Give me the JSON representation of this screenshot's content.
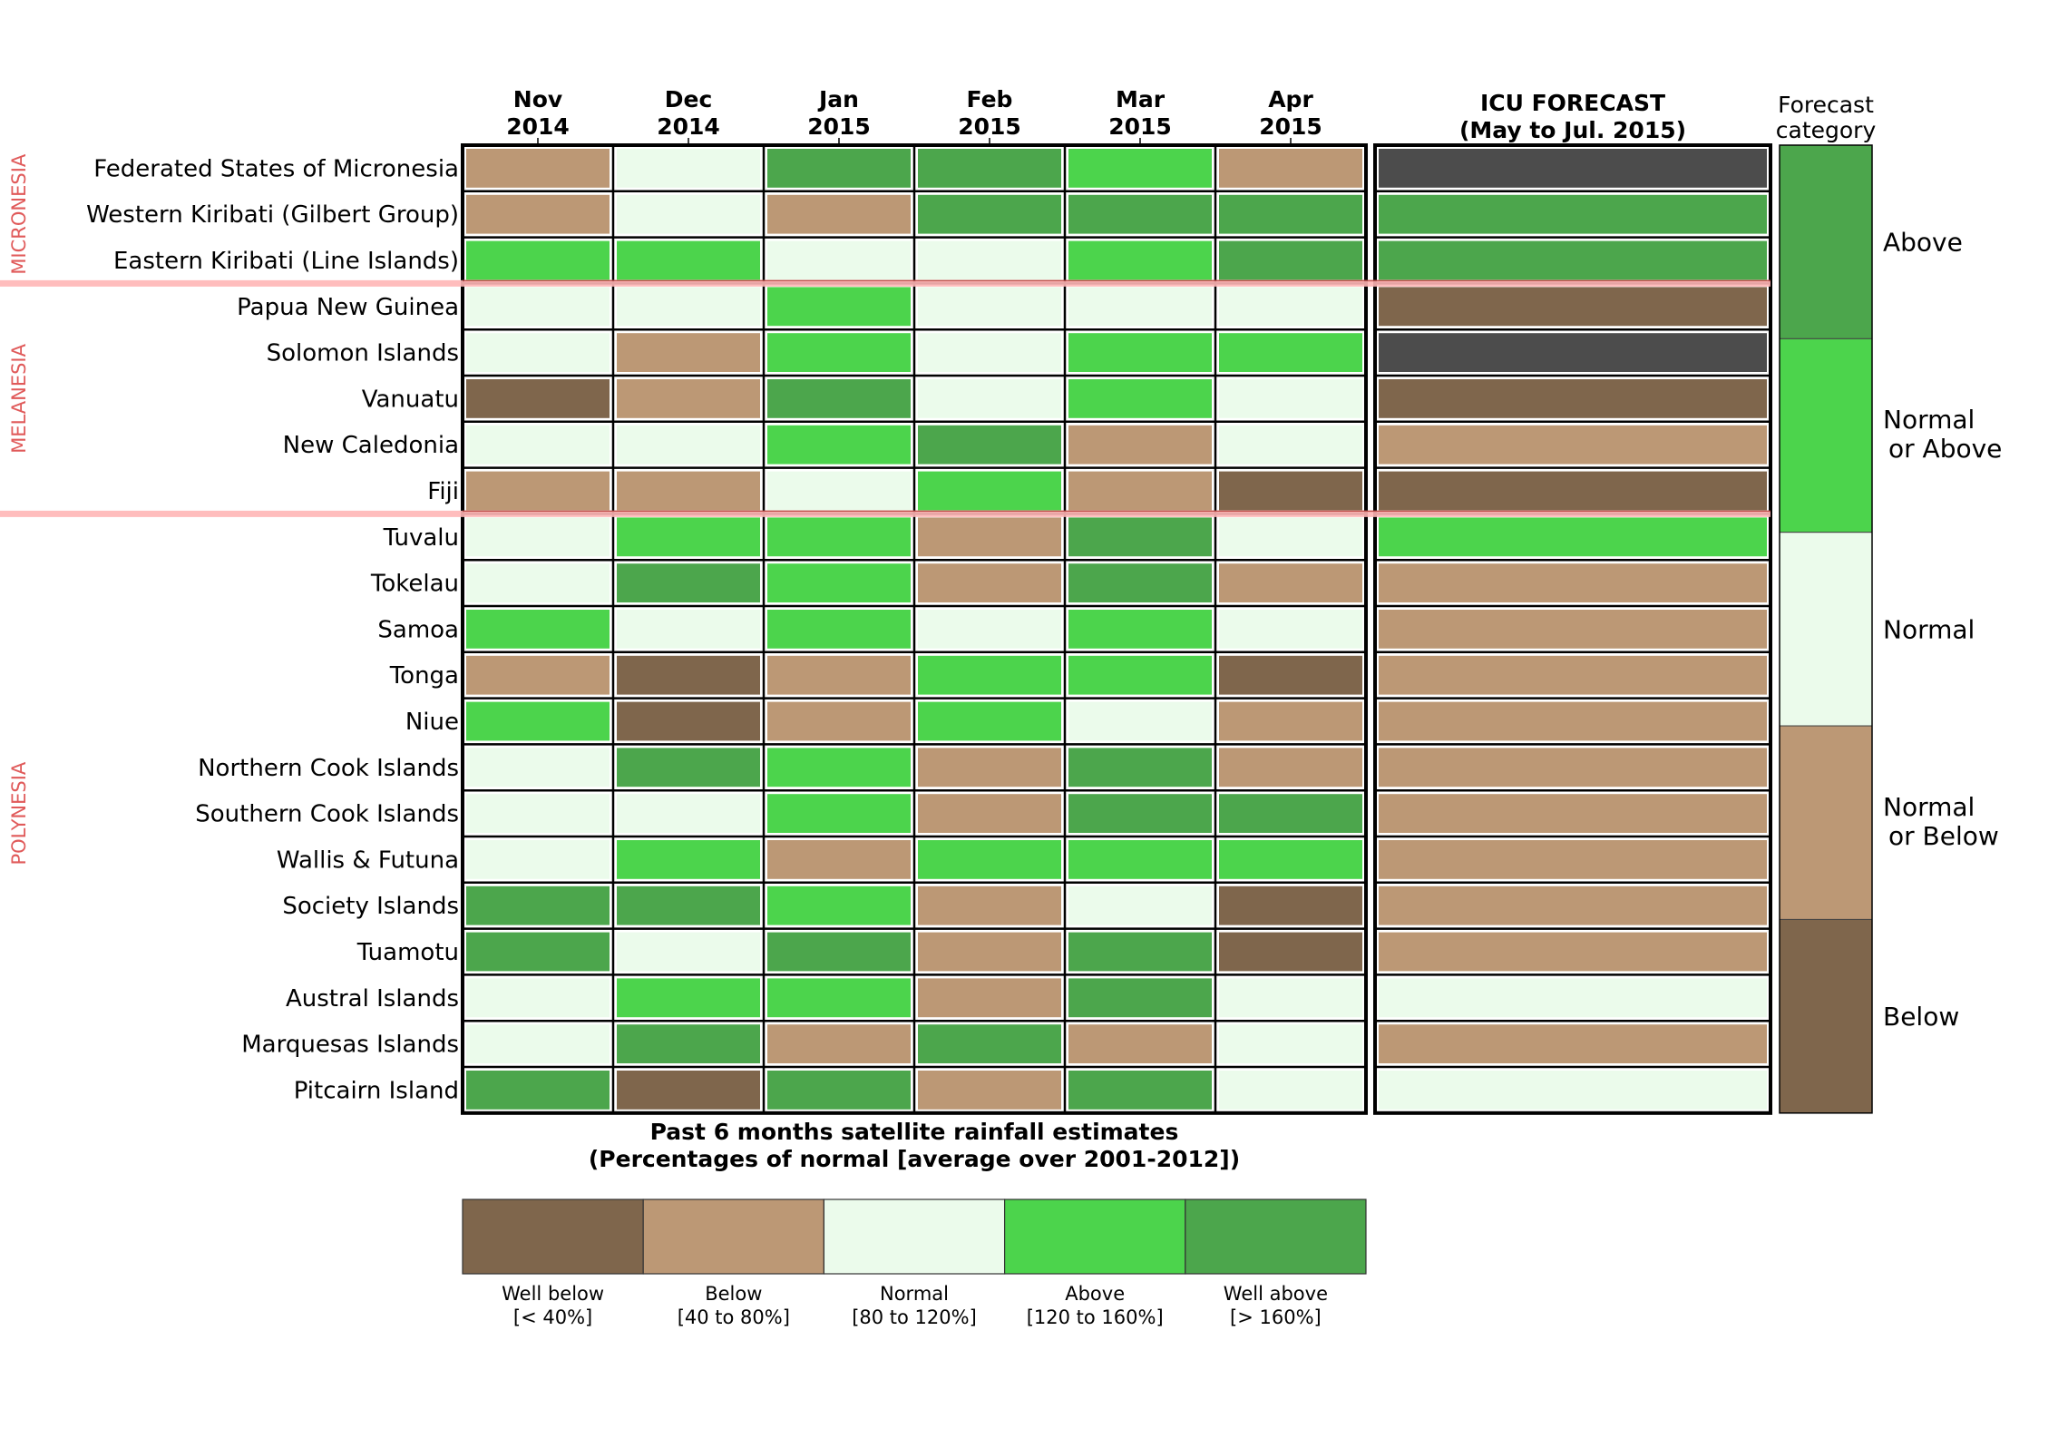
{
  "chart_data": {
    "type": "heatmap",
    "columns": [
      {
        "line1": "Nov",
        "line2": "2014"
      },
      {
        "line1": "Dec",
        "line2": "2014"
      },
      {
        "line1": "Jan",
        "line2": "2015"
      },
      {
        "line1": "Feb",
        "line2": "2015"
      },
      {
        "line1": "Mar",
        "line2": "2015"
      },
      {
        "line1": "Apr",
        "line2": "2015"
      }
    ],
    "forecast_title": {
      "line1": "ICU FORECAST",
      "line2": "(May to Jul. 2015)"
    },
    "forecast_category_title": {
      "line1": "Forecast",
      "line2": "category"
    },
    "past_title": {
      "line1": "Past 6 months satellite rainfall estimates",
      "line2": "(Percentages of normal [average over 2001-2012])"
    },
    "regions": [
      {
        "name": "MICRONESIA",
        "start_row": 0,
        "end_row": 2
      },
      {
        "name": "MELANESIA",
        "start_row": 3,
        "end_row": 7
      },
      {
        "name": "POLYNESIA",
        "start_row": 8,
        "end_row": 20
      }
    ],
    "rows": [
      {
        "name": "Federated States of Micronesia",
        "values": [
          "below",
          "normal",
          "well_above",
          "well_above",
          "above",
          "below"
        ],
        "forecast": "none"
      },
      {
        "name": "Western Kiribati (Gilbert Group)",
        "values": [
          "below",
          "normal",
          "below",
          "well_above",
          "well_above",
          "well_above"
        ],
        "forecast": "above"
      },
      {
        "name": "Eastern Kiribati (Line Islands)",
        "values": [
          "above",
          "above",
          "normal",
          "normal",
          "above",
          "well_above"
        ],
        "forecast": "above"
      },
      {
        "name": "Papua New Guinea",
        "values": [
          "normal",
          "normal",
          "above",
          "normal",
          "normal",
          "normal"
        ],
        "forecast": "below"
      },
      {
        "name": "Solomon Islands",
        "values": [
          "normal",
          "below",
          "above",
          "normal",
          "above",
          "above"
        ],
        "forecast": "none"
      },
      {
        "name": "Vanuatu",
        "values": [
          "well_below",
          "below",
          "well_above",
          "normal",
          "above",
          "normal"
        ],
        "forecast": "below"
      },
      {
        "name": "New Caledonia",
        "values": [
          "normal",
          "normal",
          "above",
          "well_above",
          "below",
          "normal"
        ],
        "forecast": "normal_or_below"
      },
      {
        "name": "Fiji",
        "values": [
          "below",
          "below",
          "normal",
          "above",
          "below",
          "well_below"
        ],
        "forecast": "below"
      },
      {
        "name": "Tuvalu",
        "values": [
          "normal",
          "above",
          "above",
          "below",
          "well_above",
          "normal"
        ],
        "forecast": "normal_or_above"
      },
      {
        "name": "Tokelau",
        "values": [
          "normal",
          "well_above",
          "above",
          "below",
          "well_above",
          "below"
        ],
        "forecast": "normal_or_below"
      },
      {
        "name": "Samoa",
        "values": [
          "above",
          "normal",
          "above",
          "normal",
          "above",
          "normal"
        ],
        "forecast": "normal_or_below"
      },
      {
        "name": "Tonga",
        "values": [
          "below",
          "well_below",
          "below",
          "above",
          "above",
          "well_below"
        ],
        "forecast": "normal_or_below"
      },
      {
        "name": "Niue",
        "values": [
          "above",
          "well_below",
          "below",
          "above",
          "normal",
          "below"
        ],
        "forecast": "normal_or_below"
      },
      {
        "name": "Northern Cook Islands",
        "values": [
          "normal",
          "well_above",
          "above",
          "below",
          "well_above",
          "below"
        ],
        "forecast": "normal_or_below"
      },
      {
        "name": "Southern Cook Islands",
        "values": [
          "normal",
          "normal",
          "above",
          "below",
          "well_above",
          "well_above"
        ],
        "forecast": "normal_or_below"
      },
      {
        "name": "Wallis & Futuna",
        "values": [
          "normal",
          "above",
          "below",
          "above",
          "above",
          "above"
        ],
        "forecast": "normal_or_below"
      },
      {
        "name": "Society Islands",
        "values": [
          "well_above",
          "well_above",
          "above",
          "below",
          "normal",
          "well_below"
        ],
        "forecast": "normal_or_below"
      },
      {
        "name": "Tuamotu",
        "values": [
          "well_above",
          "normal",
          "well_above",
          "below",
          "well_above",
          "well_below"
        ],
        "forecast": "normal_or_below"
      },
      {
        "name": "Austral Islands",
        "values": [
          "normal",
          "above",
          "above",
          "below",
          "well_above",
          "normal"
        ],
        "forecast": "normal"
      },
      {
        "name": "Marquesas Islands",
        "values": [
          "normal",
          "well_above",
          "below",
          "well_above",
          "below",
          "normal"
        ],
        "forecast": "normal_or_below"
      },
      {
        "name": "Pitcairn Island",
        "values": [
          "well_above",
          "well_below",
          "well_above",
          "below",
          "well_above",
          "normal"
        ],
        "forecast": "normal"
      }
    ],
    "past_legend": [
      {
        "key": "well_below",
        "label1": "Well below",
        "label2": "[< 40%]"
      },
      {
        "key": "below",
        "label1": "Below",
        "label2": "[40 to 80%]"
      },
      {
        "key": "normal",
        "label1": "Normal",
        "label2": "[80 to 120%]"
      },
      {
        "key": "above",
        "label1": "Above",
        "label2": "[120 to 160%]"
      },
      {
        "key": "well_above",
        "label1": "Well above",
        "label2": "[> 160%]"
      }
    ],
    "forecast_categories": [
      {
        "key": "above",
        "label1": "Above",
        "label2": ""
      },
      {
        "key": "normal_or_above",
        "label1": "Normal",
        "label2": "or Above"
      },
      {
        "key": "normal",
        "label1": "Normal",
        "label2": ""
      },
      {
        "key": "normal_or_below",
        "label1": "Normal",
        "label2": "or Below"
      },
      {
        "key": "below",
        "label1": "Below",
        "label2": ""
      }
    ],
    "colors": {
      "well_below": "#7f664c",
      "below": "#bc9875",
      "normal": "#ebfbeb",
      "above": "#4cd44c",
      "well_above": "#4ca64c",
      "forecast_above": "#4ca64c",
      "forecast_normal_or_above": "#4cd44c",
      "forecast_normal": "#ebfbeb",
      "forecast_normal_or_below": "#bc9875",
      "forecast_below": "#7f664c",
      "forecast_none": "#4c4c4c",
      "region_line": "#ffb6b6",
      "region_text": "#e05a5a"
    }
  }
}
